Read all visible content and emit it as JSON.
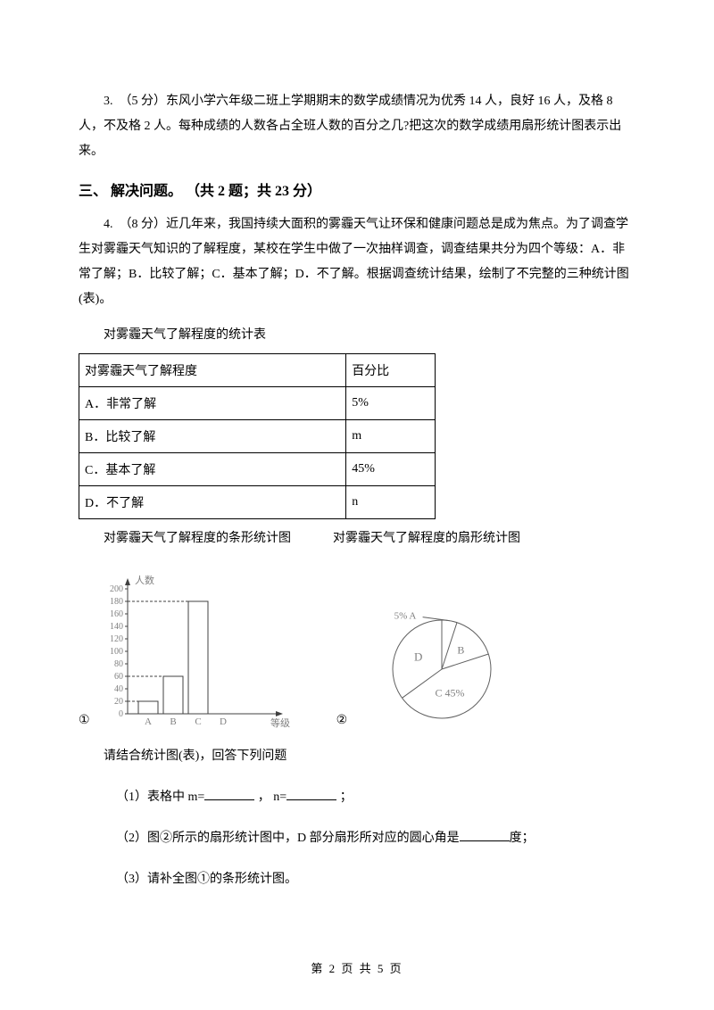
{
  "q3": {
    "text": "3.　（5 分）东风小学六年级二班上学期期末的数学成绩情况为优秀 14 人，良好 16 人，及格 8 人，不及格 2 人。每种成绩的人数各占全班人数的百分之几?把这次的数学成绩用扇形统计图表示出来。"
  },
  "section3": {
    "title": "三、 解决问题。 （共 2 题；共 23 分）"
  },
  "q4": {
    "intro": "4.　（8 分）近几年来，我国持续大面积的雾霾天气让环保和健康问题总是成为焦点。为了调查学生对雾霾天气知识的了解程度，某校在学生中做了一次抽样调查，调查结果共分为四个等级：A．非常了解；B．比较了解；C．基本了解；D．不了解。根据调查统计结果，绘制了不完整的三种统计图(表)。",
    "table_caption": "对雾霾天气了解程度的统计表",
    "table": {
      "header": [
        "对雾霾天气了解程度",
        "百分比"
      ],
      "rows": [
        [
          "A．非常了解",
          "5%"
        ],
        [
          "B．比较了解",
          "m"
        ],
        [
          "C．基本了解",
          "45%"
        ],
        [
          "D．不了解",
          "n"
        ]
      ]
    },
    "charts_caption_left": "对雾霾天气了解程度的条形统计图",
    "charts_caption_right": "对雾霾天气了解程度的扇形统计图",
    "bar_chart": {
      "type": "bar",
      "y_label": "人数",
      "x_label": "等级",
      "y_ticks": [
        0,
        20,
        40,
        60,
        80,
        100,
        120,
        140,
        160,
        180,
        200
      ],
      "categories": [
        "A",
        "B",
        "C",
        "D"
      ],
      "values": [
        20,
        60,
        180,
        null
      ],
      "bar_fill": "#ffffff",
      "bar_stroke": "#404040",
      "axis_color": "#404040",
      "grid_dash": "3,2",
      "text_color": "#808080",
      "fontsize": 10
    },
    "pie_chart": {
      "type": "pie",
      "slices": [
        {
          "label": "A",
          "pct": 5,
          "label_text": "5% A"
        },
        {
          "label": "B",
          "pct": 15,
          "label_text": "B"
        },
        {
          "label": "C",
          "pct": 45,
          "label_text": "C 45%"
        },
        {
          "label": "D",
          "pct": 35,
          "label_text": "D"
        }
      ],
      "stroke": "#606060",
      "fill": "#ffffff",
      "text_color": "#808080",
      "fontsize": 11
    },
    "chart_num_1": "①",
    "chart_num_2": "②",
    "question_lead": "请结合统计图(表)，回答下列问题",
    "sub1_a": "（1）表格中 m=",
    "sub1_b": " ， n=",
    "sub1_c": " ；",
    "sub2_a": "（2）图②所示的扇形统计图中，D 部分扇形所对应的圆心角是",
    "sub2_b": "度；",
    "sub3": "（3）请补全图①的条形统计图。"
  },
  "footer": "第 2 页 共 5 页"
}
